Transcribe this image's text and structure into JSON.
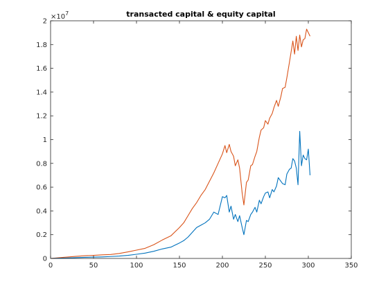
{
  "chart_data": {
    "type": "line",
    "title": "transacted capital & equity capital",
    "xlabel": "",
    "ylabel": "",
    "xlim": [
      0,
      350
    ],
    "ylim": [
      0,
      20000000
    ],
    "x_ticks": [
      0,
      50,
      100,
      150,
      200,
      250,
      300,
      350
    ],
    "y_ticks": [
      0,
      2000000,
      4000000,
      6000000,
      8000000,
      10000000,
      12000000,
      14000000,
      16000000,
      18000000,
      20000000
    ],
    "y_tick_labels": [
      "0",
      "0.2",
      "0.4",
      "0.6",
      "0.8",
      "1",
      "1.2",
      "1.4",
      "1.6",
      "1.8",
      "2"
    ],
    "y_exponent_label": "×10",
    "y_exponent_power": "7",
    "grid": false,
    "series": [
      {
        "color": "#d95319",
        "x": [
          0,
          10,
          20,
          30,
          40,
          50,
          60,
          70,
          80,
          90,
          100,
          110,
          120,
          130,
          140,
          150,
          155,
          160,
          165,
          170,
          175,
          180,
          185,
          190,
          195,
          200,
          203,
          205,
          208,
          210,
          213,
          215,
          218,
          220,
          223,
          225,
          228,
          230,
          233,
          235,
          238,
          240,
          243,
          245,
          248,
          250,
          253,
          255,
          258,
          260,
          263,
          265,
          268,
          270,
          273,
          275,
          278,
          280,
          282,
          284,
          286,
          288,
          290,
          292,
          294,
          296,
          298,
          300,
          302
        ],
        "y": [
          0,
          60000,
          120000,
          180000,
          230000,
          260000,
          300000,
          330000,
          420000,
          550000,
          700000,
          850000,
          1150000,
          1550000,
          1900000,
          2600000,
          3000000,
          3600000,
          4200000,
          4700000,
          5300000,
          5800000,
          6500000,
          7200000,
          8000000,
          8800000,
          9500000,
          8900000,
          9600000,
          9000000,
          8600000,
          7800000,
          8300000,
          7600000,
          5500000,
          4500000,
          6400000,
          6600000,
          7800000,
          7900000,
          8600000,
          9000000,
          10200000,
          10800000,
          11000000,
          11600000,
          11300000,
          11800000,
          12200000,
          12700000,
          13300000,
          12800000,
          13600000,
          14300000,
          14400000,
          15200000,
          16500000,
          17400000,
          18300000,
          17200000,
          18700000,
          17500000,
          18800000,
          17800000,
          18400000,
          18500000,
          19300000,
          19000000,
          18700000
        ]
      },
      {
        "color": "#0072bd",
        "x": [
          0,
          10,
          20,
          30,
          40,
          50,
          60,
          70,
          80,
          90,
          100,
          110,
          120,
          130,
          140,
          150,
          155,
          160,
          165,
          170,
          175,
          180,
          185,
          190,
          195,
          200,
          203,
          205,
          208,
          210,
          213,
          215,
          218,
          220,
          223,
          225,
          228,
          230,
          233,
          235,
          238,
          240,
          243,
          245,
          248,
          250,
          253,
          255,
          258,
          260,
          263,
          265,
          268,
          270,
          273,
          275,
          278,
          280,
          282,
          284,
          286,
          288,
          290,
          292,
          294,
          296,
          298,
          300,
          302
        ],
        "y": [
          0,
          20000,
          40000,
          70000,
          90000,
          110000,
          130000,
          160000,
          200000,
          260000,
          350000,
          450000,
          600000,
          800000,
          950000,
          1300000,
          1500000,
          1800000,
          2200000,
          2600000,
          2800000,
          3000000,
          3300000,
          3900000,
          3700000,
          5200000,
          5100000,
          5300000,
          3900000,
          4400000,
          3300000,
          3700000,
          3100000,
          3600000,
          2600000,
          2000000,
          3200000,
          3100000,
          3700000,
          3900000,
          4300000,
          3900000,
          4900000,
          4600000,
          5200000,
          5500000,
          5600000,
          5100000,
          5800000,
          5600000,
          6100000,
          6800000,
          6500000,
          6300000,
          6200000,
          7100000,
          7500000,
          7600000,
          8400000,
          8200000,
          7600000,
          6200000,
          10700000,
          7800000,
          8700000,
          8400000,
          8300000,
          9200000,
          7000000
        ]
      }
    ]
  }
}
